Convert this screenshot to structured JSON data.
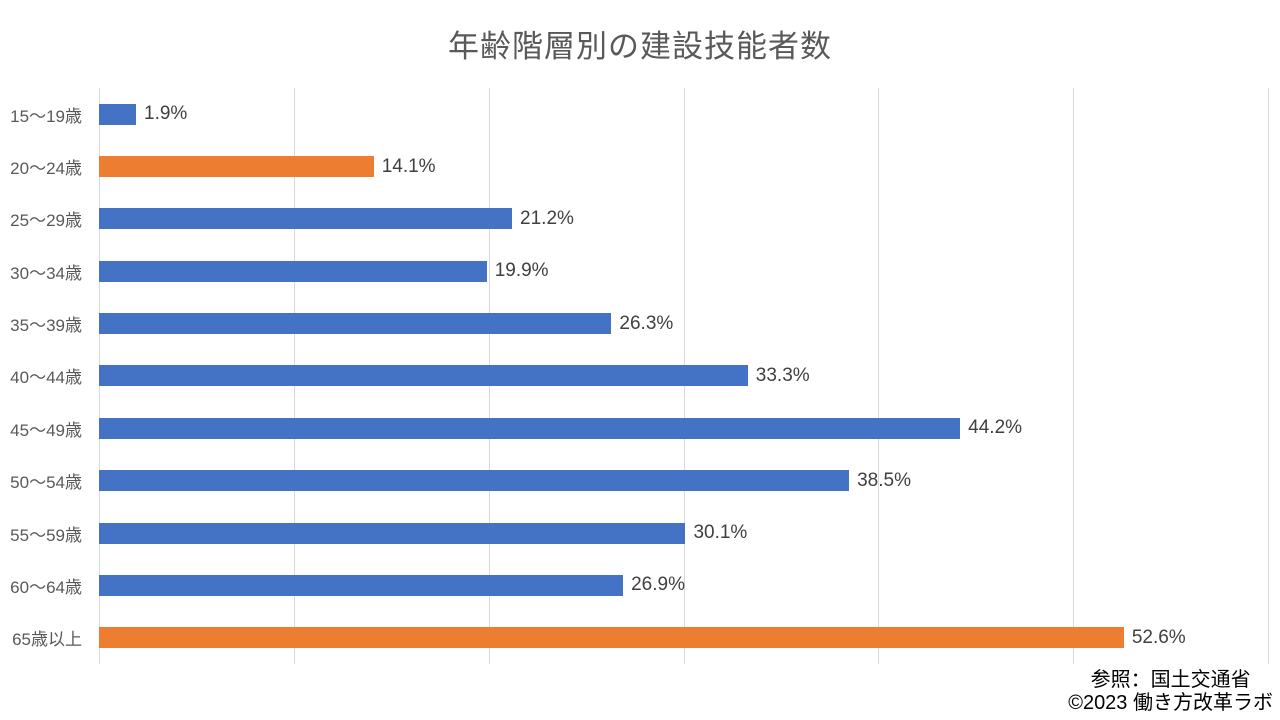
{
  "title": "年齢階層別の建設技能者数",
  "footer": {
    "source": "参照：国土交通省",
    "copyright": "©2023 働き方改革ラボ"
  },
  "chart_data": {
    "type": "bar",
    "orientation": "horizontal",
    "title": "年齢階層別の建設技能者数",
    "categories": [
      "15〜19歳",
      "20〜24歳",
      "25〜29歳",
      "30〜34歳",
      "35〜39歳",
      "40〜44歳",
      "45〜49歳",
      "50〜54歳",
      "55〜59歳",
      "60〜64歳",
      "65歳以上"
    ],
    "values": [
      1.9,
      14.1,
      21.2,
      19.9,
      26.3,
      33.3,
      44.2,
      38.5,
      30.1,
      26.9,
      52.6
    ],
    "value_labels": [
      "1.9%",
      "14.1%",
      "21.2%",
      "19.9%",
      "26.3%",
      "33.3%",
      "44.2%",
      "38.5%",
      "30.1%",
      "26.9%",
      "52.6%"
    ],
    "highlight_indices": [
      1,
      10
    ],
    "colors": {
      "default": "#4472C4",
      "highlight": "#ED7D31",
      "gridline": "#D9D9D9",
      "title_text": "#595959",
      "category_text": "#595959",
      "value_text": "#404040",
      "footer_text": "#000000"
    },
    "xlim": [
      0,
      60
    ],
    "gridline_step": 10,
    "grid": true,
    "legend": "none",
    "x_tick_labels_visible": false
  }
}
